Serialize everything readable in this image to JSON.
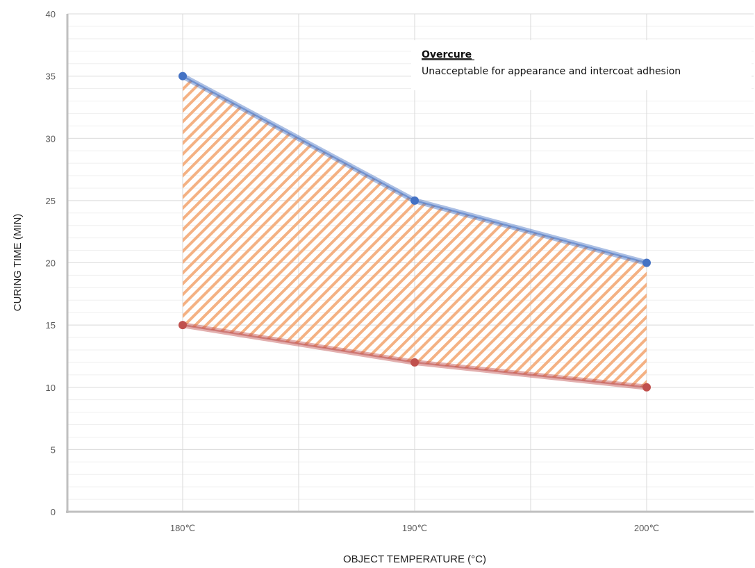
{
  "chart_data": {
    "type": "line",
    "categories": [
      "180℃",
      "190℃",
      "200℃"
    ],
    "series": [
      {
        "values": [
          35,
          25,
          20
        ],
        "color": "#4472c4"
      },
      {
        "values": [
          15,
          12,
          10
        ],
        "color": "#c0504d"
      }
    ],
    "band_fill": {
      "between_series": [
        0,
        1
      ],
      "pattern": "diagonal-hatch",
      "color": "#f4b183"
    },
    "xlabel": "OBJECT TEMPERATURE (°C)",
    "ylabel": "CURING TIME (MIN)",
    "ylim": [
      0,
      40
    ],
    "yticks": [
      0,
      5,
      10,
      15,
      20,
      25,
      30,
      35,
      40
    ],
    "grid": true,
    "annotation": {
      "title": "Overcure",
      "text": "Unacceptable for appearance and intercoat adhesion"
    }
  }
}
